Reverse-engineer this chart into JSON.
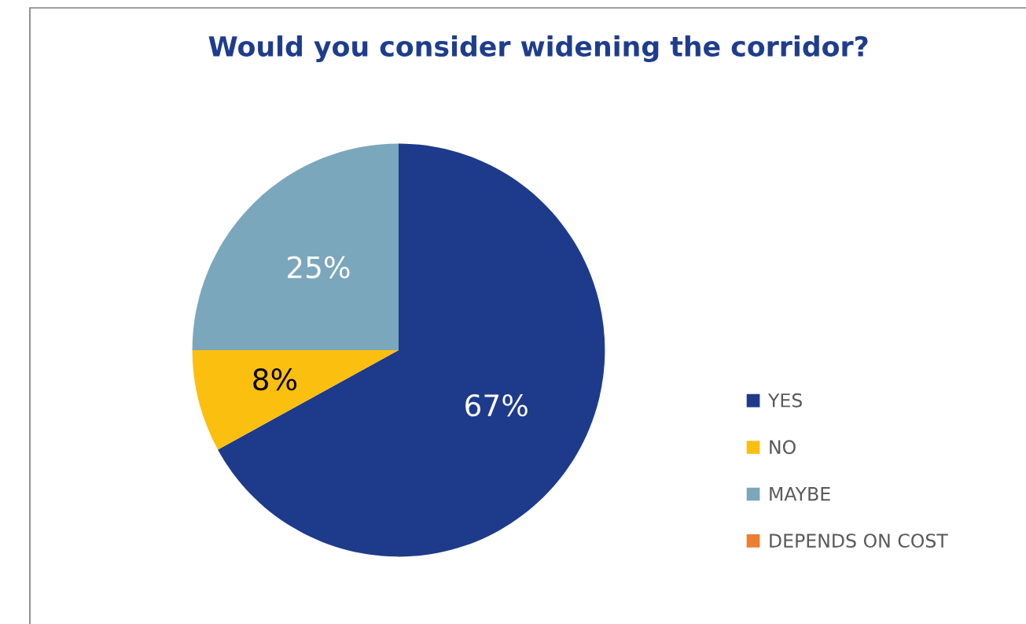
{
  "chart_data": {
    "type": "pie",
    "title": "Would you consider widening the corridor?",
    "categories": [
      "YES",
      "NO",
      "MAYBE",
      "DEPENDS ON COST"
    ],
    "values": [
      67,
      8,
      25,
      0
    ],
    "colors": [
      "#1e3a8a",
      "#fbbf0f",
      "#7ba7bd",
      "#ed7d31"
    ],
    "value_labels": [
      "67%",
      "8%",
      "25%",
      null
    ],
    "legend": "right"
  }
}
